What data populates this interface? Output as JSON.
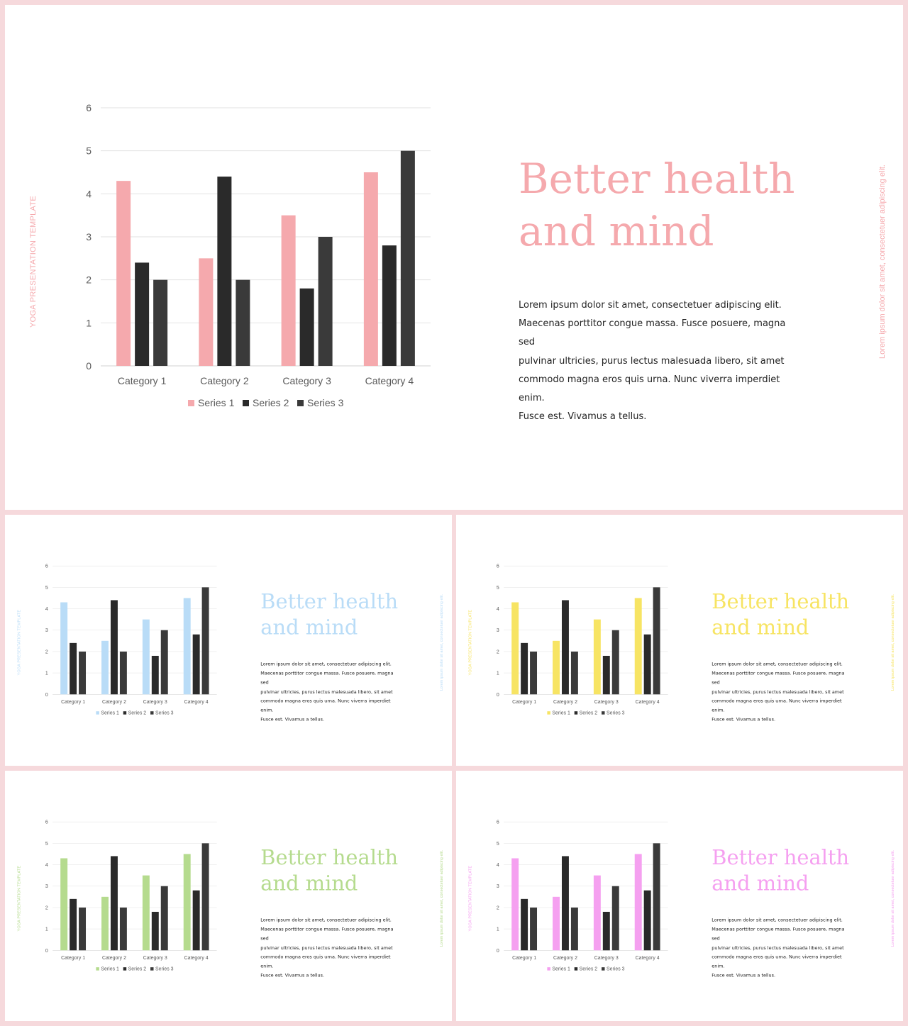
{
  "slides": [
    {
      "accent": "#f5a9ad",
      "side_left": "YOGA PRESENTATION TEMPLATE",
      "side_right": "Lorem ipsum dolor sit amet, consectetuer adipiscing elit.",
      "title_line1": "Better health",
      "title_line2": "and mind"
    },
    {
      "accent": "#b9dcf7",
      "side_left": "YOGA PRESENTATION TEMPLATE",
      "side_right": "Lorem ipsum dolor sit amet, consectetuer adipiscing elit.",
      "title_line1": "Better health",
      "title_line2": "and mind"
    },
    {
      "accent": "#f7e463",
      "side_left": "YOGA PRESENTATION TEMPLATE",
      "side_right": "Lorem ipsum dolor sit amet, consectetuer adipiscing elit.",
      "title_line1": "Better health",
      "title_line2": "and mind"
    },
    {
      "accent": "#b5db8e",
      "side_left": "YOGA PRESENTATION TEMPLATE",
      "side_right": "Lorem ipsum dolor sit amet, consectetuer adipiscing elit.",
      "title_line1": "Better health",
      "title_line2": "and mind"
    },
    {
      "accent": "#f5a0f0",
      "side_left": "YOGA PRESENTATION TEMPLATE",
      "side_right": "Lorem ipsum dolor sit amet, consectetuer adipiscing elit.",
      "title_line1": "Better health",
      "title_line2": "and mind"
    }
  ],
  "body_lines": [
    "Lorem ipsum dolor sit amet, consectetuer adipiscing elit.",
    "Maecenas porttitor congue massa. Fusce posuere, magna sed",
    "pulvinar ultricies, purus lectus malesuada libero, sit amet",
    "commodo magna eros quis urna. Nunc viverra imperdiet enim.",
    "Fusce est. Vivamus a tellus."
  ],
  "chart_data": {
    "type": "bar",
    "categories": [
      "Category 1",
      "Category 2",
      "Category 3",
      "Category 4"
    ],
    "series": [
      {
        "name": "Series 1",
        "values": [
          4.3,
          2.5,
          3.5,
          4.5
        ]
      },
      {
        "name": "Series 2",
        "values": [
          2.4,
          4.4,
          1.8,
          2.8
        ]
      },
      {
        "name": "Series 3",
        "values": [
          2.0,
          2.0,
          3.0,
          5.0
        ]
      }
    ],
    "ylim": [
      0,
      6
    ],
    "yticks": [
      "0",
      "1",
      "2",
      "3",
      "4",
      "5",
      "6"
    ],
    "grid": true,
    "legend": "bottom",
    "series_colors": [
      "accent",
      "#2a2a2a",
      "#3a3a3a"
    ]
  }
}
